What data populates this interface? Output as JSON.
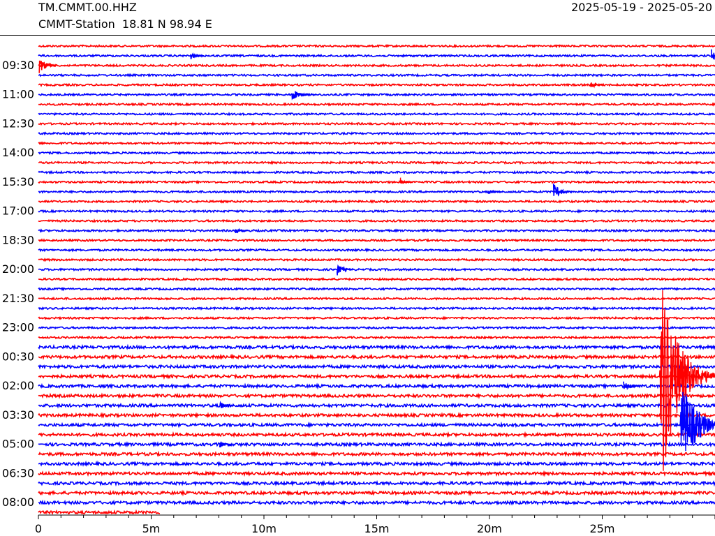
{
  "header": {
    "station_code": "TM.CMMT.00.HHZ",
    "station_info": "CMMT-Station  18.81 N 98.94 E",
    "date_range": "2025-05-19 - 2025-05-20"
  },
  "chart_data": {
    "type": "line",
    "title": "TM.CMMT.00.HHZ",
    "xlabel": "",
    "ylabel": "",
    "x_range_minutes": [
      0,
      30
    ],
    "x_ticks": [
      {
        "value": 0,
        "label": "0"
      },
      {
        "value": 5,
        "label": "5m"
      },
      {
        "value": 10,
        "label": "10m"
      },
      {
        "value": 15,
        "label": "15m"
      },
      {
        "value": 20,
        "label": "20m"
      },
      {
        "value": 25,
        "label": "25m"
      }
    ],
    "row_interval_minutes": 30,
    "row_count": 49,
    "row_colors": [
      "#ff0000",
      "#0000ff"
    ],
    "y_labels": [
      "09:30",
      "11:00",
      "12:30",
      "14:00",
      "15:30",
      "17:00",
      "18:30",
      "20:00",
      "21:30",
      "23:00",
      "00:30",
      "02:00",
      "03:30",
      "05:00",
      "06:30",
      "08:00"
    ],
    "y_label_every_rows": 3,
    "y_label_first_row": 2,
    "last_row_end_minute": 5.4,
    "events": [
      {
        "row": 1,
        "minute": 6.8,
        "amplitude": 6
      },
      {
        "row": 1,
        "minute": 29.9,
        "amplitude": 10
      },
      {
        "row": 2,
        "minute": 0.1,
        "amplitude": 12
      },
      {
        "row": 4,
        "minute": 24.5,
        "amplitude": 6
      },
      {
        "row": 5,
        "minute": 11.3,
        "amplitude": 10
      },
      {
        "row": 14,
        "minute": 16.1,
        "amplitude": 5
      },
      {
        "row": 15,
        "minute": 22.9,
        "amplitude": 12
      },
      {
        "row": 15,
        "minute": 20.0,
        "amplitude": 4
      },
      {
        "row": 19,
        "minute": 8.8,
        "amplitude": 5
      },
      {
        "row": 23,
        "minute": 13.3,
        "amplitude": 9
      },
      {
        "row": 34,
        "minute": 27.6,
        "amplitude": 180
      },
      {
        "row": 35,
        "minute": 26.0,
        "amplitude": 8
      },
      {
        "row": 37,
        "minute": 8.1,
        "amplitude": 6
      },
      {
        "row": 39,
        "minute": 28.5,
        "amplitude": 70
      },
      {
        "row": 41,
        "minute": 8.1,
        "amplitude": 5
      }
    ],
    "colors": {
      "odd_rows": "#0000ff",
      "even_rows": "#ff0000",
      "axis": "#000000"
    }
  }
}
